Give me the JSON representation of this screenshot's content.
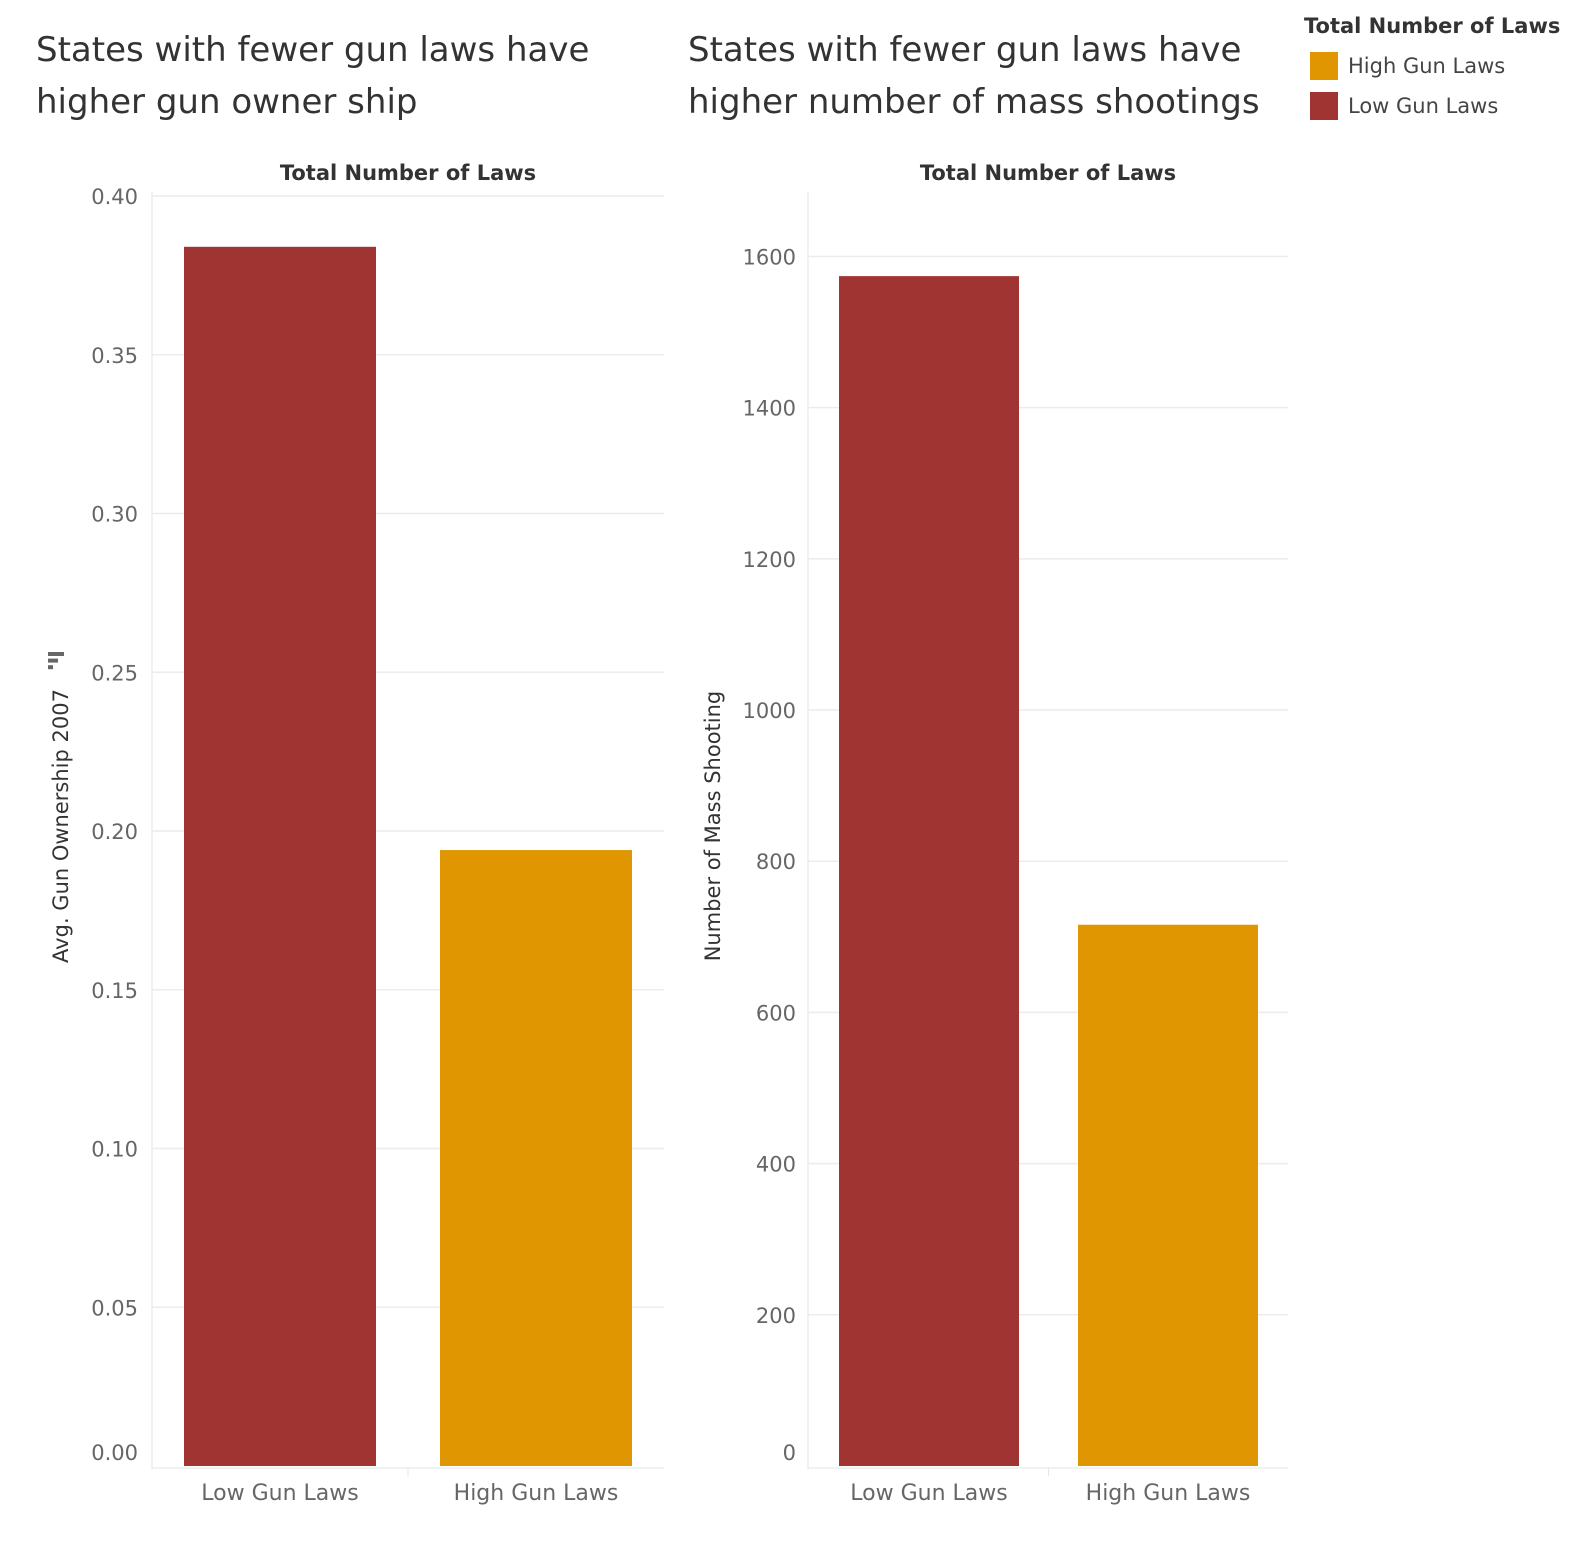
{
  "chart_data": [
    {
      "type": "bar",
      "title": "States with fewer gun laws have\nhigher gun owner ship",
      "title_lines": [
        "States with fewer gun laws have",
        "higher gun owner ship"
      ],
      "column_header": "Total Number of Laws",
      "ylabel": "Avg. Gun Ownership 2007",
      "categories": [
        "Low Gun Laws",
        "High Gun Laws"
      ],
      "values": [
        0.384,
        0.194
      ],
      "colors": [
        "#a03432",
        "#e09600"
      ],
      "ylim": [
        0,
        0.4
      ],
      "yticks": [
        "0.00",
        "0.05",
        "0.10",
        "0.15",
        "0.20",
        "0.25",
        "0.30",
        "0.35",
        "0.40"
      ],
      "grid": true
    },
    {
      "type": "bar",
      "title": "States with fewer gun laws have\nhigher number of mass shootings",
      "title_lines": [
        "States with fewer gun laws have",
        "higher number of mass shootings"
      ],
      "column_header": "Total Number of Laws",
      "ylabel": "Number of Mass Shooting",
      "categories": [
        "Low Gun Laws",
        "High Gun Laws"
      ],
      "values": [
        1574,
        716
      ],
      "colors": [
        "#a03432",
        "#e09600"
      ],
      "ylim": [
        0,
        1680
      ],
      "yticks": [
        "0",
        "200",
        "400",
        "600",
        "800",
        "1000",
        "1200",
        "1400",
        "1600"
      ],
      "grid": true
    }
  ],
  "legend": {
    "title": "Total Number of Laws",
    "placement": "top-right",
    "items": [
      {
        "label": "High Gun Laws",
        "color": "#e09600"
      },
      {
        "label": "Low Gun Laws",
        "color": "#a03432"
      }
    ]
  }
}
